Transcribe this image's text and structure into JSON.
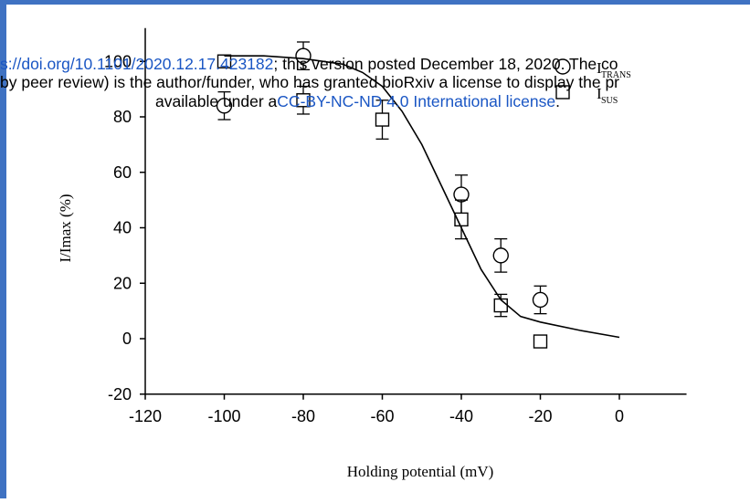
{
  "chart_data": {
    "type": "scatter",
    "title": "",
    "xlabel": "Holding potential (mV)",
    "ylabel": "I/Imax (%)",
    "xlim": [
      -125,
      17
    ],
    "ylim": [
      -22,
      112
    ],
    "xticks": [
      -120,
      -100,
      -80,
      -60,
      -40,
      -20,
      0
    ],
    "yticks": [
      -20,
      0,
      20,
      40,
      60,
      80,
      100
    ],
    "grid": false,
    "legend": {
      "position": "top-right",
      "entries": [
        {
          "name": "I",
          "sub": "TRANS",
          "marker": "circle"
        },
        {
          "name": "I",
          "sub": "SUS",
          "marker": "square"
        }
      ]
    },
    "series": [
      {
        "name": "I_TRANS",
        "marker": "circle",
        "x": [
          -100,
          -80,
          -40,
          -30,
          -20
        ],
        "y": [
          84,
          102,
          52,
          30,
          14
        ],
        "err": [
          5,
          5,
          7,
          6,
          5
        ]
      },
      {
        "name": "I_SUS",
        "marker": "square",
        "x": [
          -100,
          -80,
          -60,
          -40,
          -30,
          -20
        ],
        "y": [
          100,
          86,
          79,
          43,
          12,
          -1
        ],
        "err": [
          0,
          5,
          7,
          7,
          4,
          0
        ]
      },
      {
        "name": "fit",
        "marker": "none",
        "x": [
          -100,
          -90,
          -80,
          -70,
          -65,
          -60,
          -55,
          -50,
          -45,
          -40,
          -35,
          -30,
          -25,
          -20,
          -10,
          0
        ],
        "y": [
          102,
          102,
          101,
          99,
          96,
          91,
          82,
          70,
          55,
          40,
          25,
          14,
          8,
          6,
          3,
          0.5
        ]
      }
    ]
  },
  "banner": {
    "line1_pre": "s://doi.org/",
    "line1_link": "10.1101/2020.12.17.423182",
    "line1_post": "; this version posted December 18, 2020. The co",
    "line2": "by peer review) is the author/funder, who has granted bioRxiv a license to display the pr",
    "line3_pre": "available under a",
    "line3_link": "CC-BY-NC-ND 4.0 International license",
    "line3_post": "."
  },
  "colors": {
    "frame": "#3f72c2",
    "link": "#1a56c4",
    "plot": "#000000"
  }
}
